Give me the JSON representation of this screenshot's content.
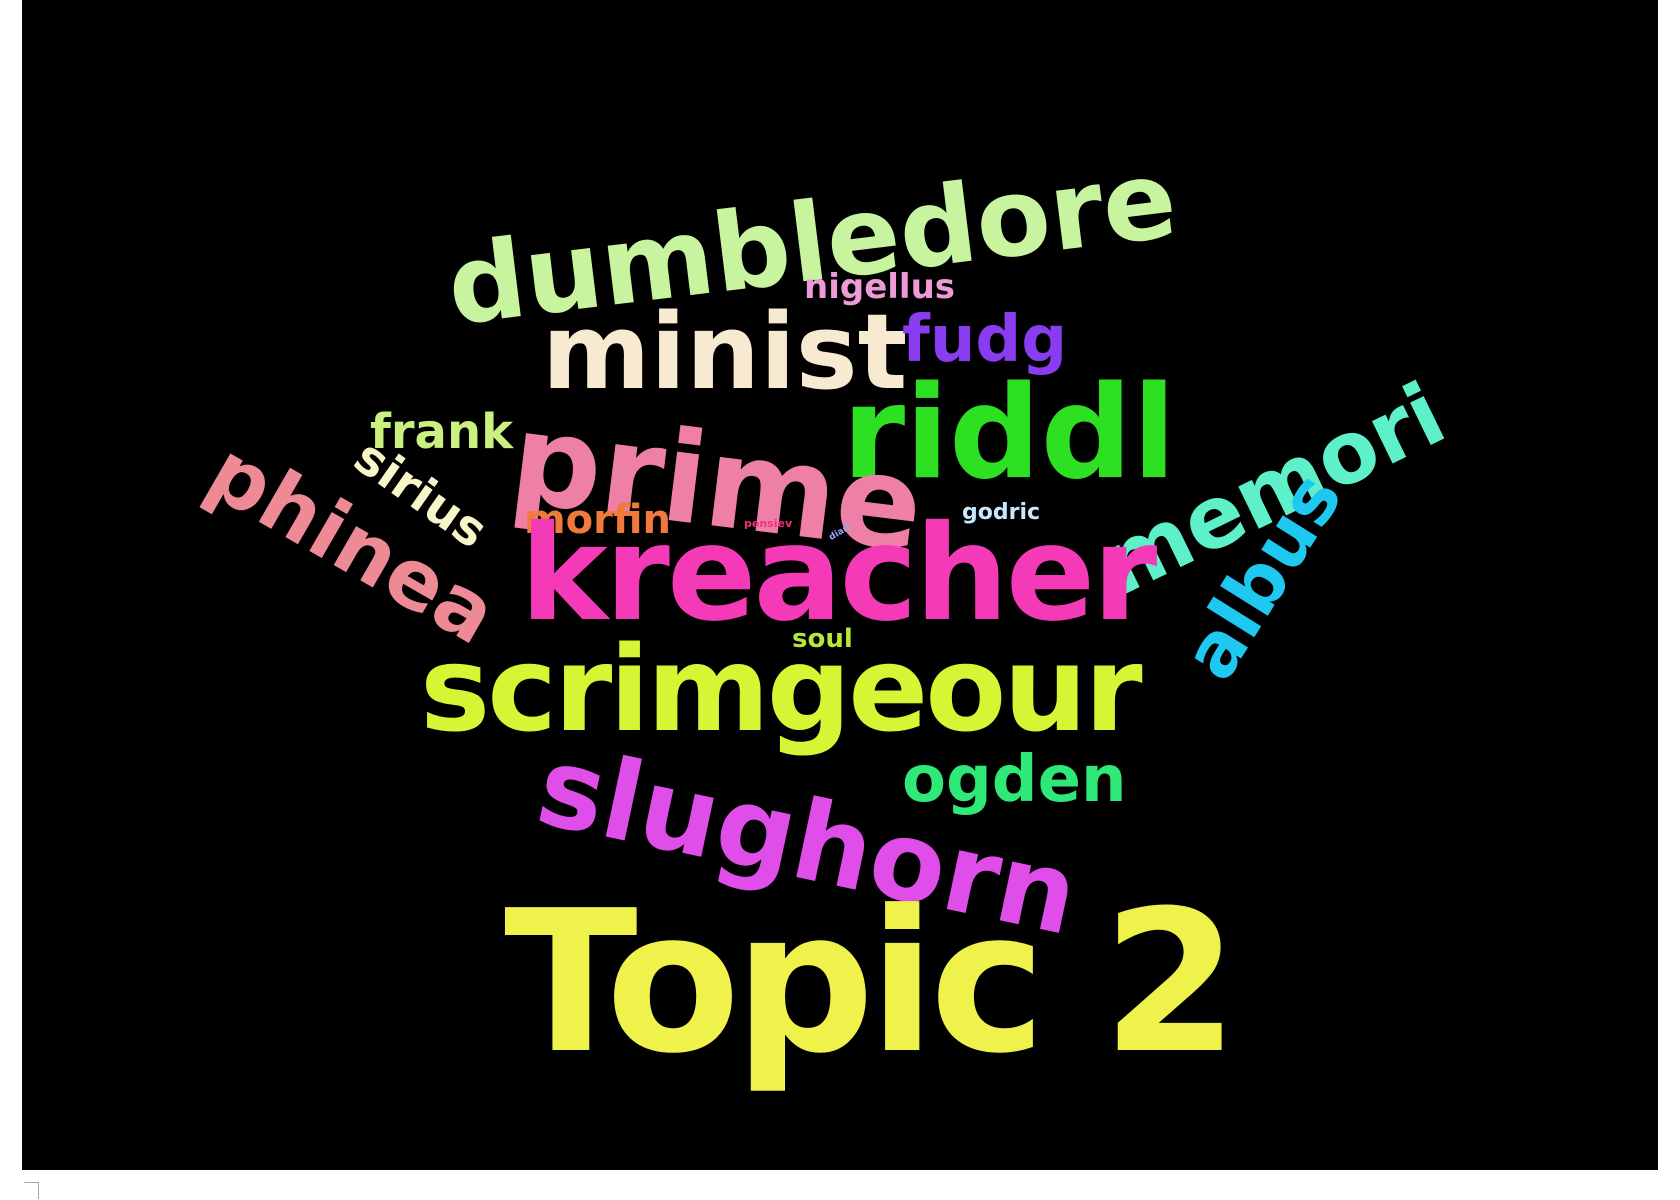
{
  "words": {
    "dumbledore": {
      "text": "dumbledore",
      "color": "#c8f4a0"
    },
    "minist": {
      "text": "minist",
      "color": "#f7ead0"
    },
    "fudg": {
      "text": "fudg",
      "color": "#8a3cf0"
    },
    "nigellus": {
      "text": "nigellus",
      "color": "#ef9ad8"
    },
    "riddl": {
      "text": "riddl",
      "color": "#2de022"
    },
    "memori": {
      "text": "memori",
      "color": "#5ef0c8"
    },
    "prime": {
      "text": "prime",
      "color": "#ee80a8"
    },
    "frank": {
      "text": "frank",
      "color": "#caf080"
    },
    "sirius": {
      "text": "sirius",
      "color": "#f8f6c8"
    },
    "phinea": {
      "text": "phinea",
      "color": "#ee8a96"
    },
    "morfin": {
      "text": "morfin",
      "color": "#ef7a3c"
    },
    "pensiev": {
      "text": "pensiev",
      "color": "#f0307a"
    },
    "diary": {
      "text": "diari",
      "color": "#9aa8ff"
    },
    "godric": {
      "text": "godric",
      "color": "#c8e8ff"
    },
    "kreacher": {
      "text": "kreacher",
      "color": "#f53ab8"
    },
    "albus": {
      "text": "albus",
      "color": "#1ec8f0"
    },
    "soul": {
      "text": "soul",
      "color": "#b4e83c"
    },
    "scrimgeour": {
      "text": "scrimgeour",
      "color": "#d8f535"
    },
    "slughorn": {
      "text": "slughorn",
      "color": "#df4ee8"
    },
    "ogden": {
      "text": "ogden",
      "color": "#2ee878"
    },
    "topic": {
      "text": "Topic 2",
      "color": "#eef24a"
    }
  }
}
